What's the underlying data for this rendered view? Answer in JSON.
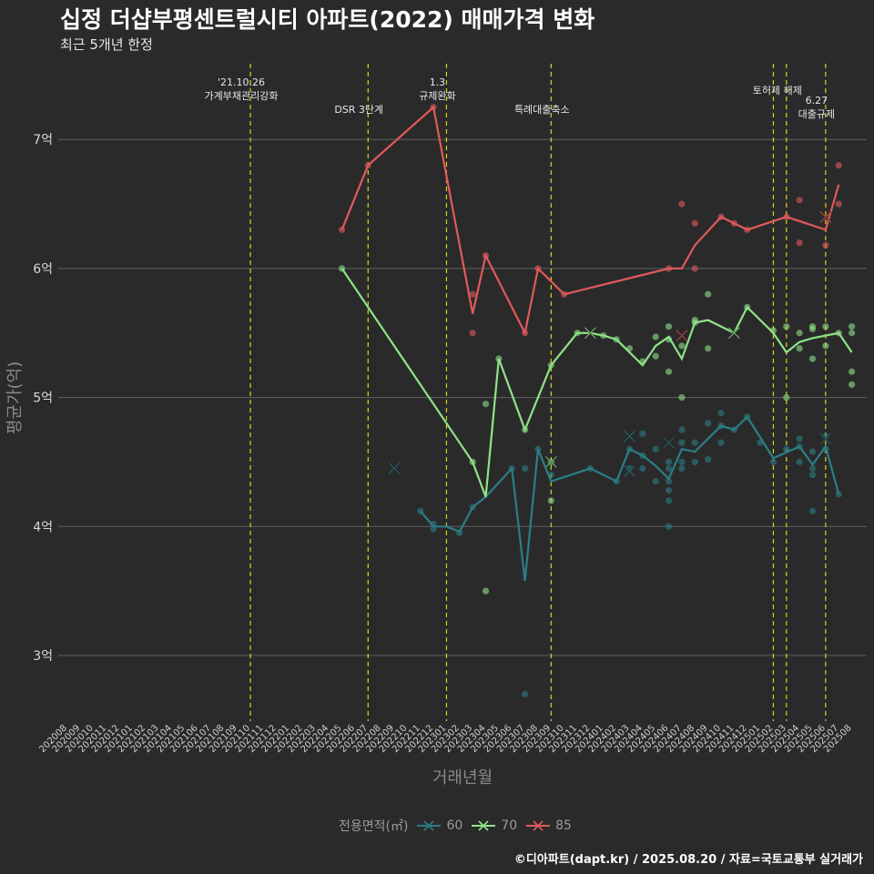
{
  "chart_data": {
    "type": "line",
    "title": "십정 더샵부평센트럴시티 아파트(2022) 매매가격 변화",
    "subtitle": "최근 5개년 한정",
    "xlabel": "거래년월",
    "ylabel": "평균가(억)",
    "caption": "©디아파트(dapt.kr) / 2025.08.20 / 자료=국토교통부 실거래가",
    "legend_title": "전용면적(㎡)",
    "legend_position": "bottom",
    "grid": true,
    "ylim": [
      2.5,
      7.5
    ],
    "yticks": [
      3,
      4,
      5,
      6,
      7
    ],
    "ytick_labels": [
      "3억",
      "4억",
      "5억",
      "6억",
      "7억"
    ],
    "x_categories": [
      "202008",
      "202009",
      "202010",
      "202011",
      "202012",
      "202101",
      "202102",
      "202103",
      "202104",
      "202105",
      "202106",
      "202107",
      "202108",
      "202109",
      "202110",
      "202111",
      "202112",
      "202201",
      "202202",
      "202203",
      "202204",
      "202205",
      "202206",
      "202207",
      "202208",
      "202209",
      "202210",
      "202211",
      "202212",
      "202301",
      "202302",
      "202303",
      "202304",
      "202305",
      "202306",
      "202307",
      "202308",
      "202309",
      "202310",
      "202311",
      "202312",
      "202401",
      "202402",
      "202403",
      "202404",
      "202405",
      "202406",
      "202407",
      "202408",
      "202409",
      "202410",
      "202411",
      "202412",
      "202501",
      "202502",
      "202503",
      "202504",
      "202505",
      "202506",
      "202507",
      "202508"
    ],
    "events": [
      {
        "x": 14,
        "label": [
          "'21.10.26",
          "가계부채관리강화"
        ],
        "row": "top"
      },
      {
        "x": 23,
        "label": [
          "DSR 3단계"
        ],
        "row": "low"
      },
      {
        "x": 29,
        "label": [
          "1.3",
          "규제완화"
        ],
        "row": "top"
      },
      {
        "x": 37,
        "label": [
          "특례대출축소"
        ],
        "row": "low"
      },
      {
        "x": 54,
        "label": [],
        "row": "top"
      },
      {
        "x": 55,
        "label": [
          "토허제 해제"
        ],
        "row": "mid"
      },
      {
        "x": 58,
        "label": [
          "6.27",
          "대출규제"
        ],
        "row": "low2"
      }
    ],
    "series": [
      {
        "name": "60",
        "color": "#2a7f86",
        "line": [
          [
            27,
            4.12
          ],
          [
            28,
            4.0
          ],
          [
            29,
            4.0
          ],
          [
            30,
            3.96
          ],
          [
            31,
            4.15
          ],
          [
            32,
            4.23
          ],
          [
            34,
            4.45
          ],
          [
            35,
            3.58
          ],
          [
            36,
            4.6
          ],
          [
            37,
            4.35
          ],
          [
            40,
            4.45
          ],
          [
            42,
            4.35
          ],
          [
            43,
            4.6
          ],
          [
            44,
            4.55
          ],
          [
            45,
            4.47
          ],
          [
            46,
            4.37
          ],
          [
            47,
            4.6
          ],
          [
            48,
            4.58
          ],
          [
            50,
            4.78
          ],
          [
            51,
            4.75
          ],
          [
            52,
            4.85
          ],
          [
            54,
            4.53
          ],
          [
            56,
            4.62
          ],
          [
            57,
            4.48
          ],
          [
            58,
            4.62
          ],
          [
            59,
            4.25
          ]
        ],
        "points": [
          [
            27,
            4.12
          ],
          [
            28,
            3.98
          ],
          [
            28,
            4.02
          ],
          [
            30,
            3.95
          ],
          [
            31,
            4.15
          ],
          [
            34,
            4.45
          ],
          [
            35,
            4.45
          ],
          [
            35,
            2.7
          ],
          [
            36,
            4.6
          ],
          [
            37,
            4.4
          ],
          [
            40,
            4.45
          ],
          [
            42,
            4.35
          ],
          [
            43,
            4.45
          ],
          [
            43,
            4.6
          ],
          [
            44,
            4.72
          ],
          [
            44,
            4.55
          ],
          [
            44,
            4.45
          ],
          [
            45,
            4.6
          ],
          [
            45,
            4.35
          ],
          [
            46,
            4.5
          ],
          [
            46,
            4.45
          ],
          [
            46,
            4.35
          ],
          [
            46,
            4.28
          ],
          [
            46,
            4.2
          ],
          [
            46,
            4.0
          ],
          [
            47,
            4.75
          ],
          [
            47,
            4.65
          ],
          [
            47,
            4.5
          ],
          [
            47,
            4.45
          ],
          [
            48,
            4.65
          ],
          [
            48,
            4.5
          ],
          [
            49,
            4.8
          ],
          [
            49,
            4.52
          ],
          [
            50,
            4.88
          ],
          [
            50,
            4.78
          ],
          [
            50,
            4.65
          ],
          [
            51,
            4.75
          ],
          [
            52,
            4.85
          ],
          [
            53,
            4.65
          ],
          [
            54,
            4.5
          ],
          [
            55,
            4.6
          ],
          [
            56,
            4.68
          ],
          [
            56,
            4.62
          ],
          [
            56,
            4.5
          ],
          [
            57,
            4.58
          ],
          [
            57,
            4.45
          ],
          [
            57,
            4.4
          ],
          [
            57,
            4.12
          ],
          [
            58,
            4.7
          ],
          [
            58,
            4.6
          ],
          [
            59,
            4.25
          ]
        ],
        "crosses": [
          [
            25,
            4.45
          ],
          [
            43,
            4.7
          ],
          [
            43,
            4.43
          ],
          [
            46,
            4.65
          ],
          [
            58,
            4.68
          ]
        ]
      },
      {
        "name": "70",
        "color": "#8fe388",
        "line": [
          [
            21,
            6.0
          ],
          [
            31,
            4.5
          ],
          [
            32,
            4.23
          ],
          [
            33,
            5.3
          ],
          [
            35,
            4.75
          ],
          [
            37,
            5.25
          ],
          [
            39,
            5.5
          ],
          [
            40,
            5.5
          ],
          [
            41,
            5.48
          ],
          [
            42,
            5.45
          ],
          [
            43,
            5.35
          ],
          [
            44,
            5.25
          ],
          [
            45,
            5.4
          ],
          [
            46,
            5.47
          ],
          [
            47,
            5.3
          ],
          [
            48,
            5.58
          ],
          [
            49,
            5.6
          ],
          [
            50,
            5.55
          ],
          [
            51,
            5.5
          ],
          [
            52,
            5.7
          ],
          [
            54,
            5.5
          ],
          [
            55,
            5.35
          ],
          [
            56,
            5.43
          ],
          [
            57,
            5.46
          ],
          [
            59,
            5.5
          ],
          [
            60,
            5.35
          ]
        ],
        "points": [
          [
            21,
            6.0
          ],
          [
            31,
            4.5
          ],
          [
            32,
            4.95
          ],
          [
            32,
            3.5
          ],
          [
            33,
            5.3
          ],
          [
            35,
            4.75
          ],
          [
            37,
            5.25
          ],
          [
            37,
            4.5
          ],
          [
            37,
            4.2
          ],
          [
            39,
            5.5
          ],
          [
            41,
            5.48
          ],
          [
            42,
            5.45
          ],
          [
            43,
            5.38
          ],
          [
            44,
            5.28
          ],
          [
            45,
            5.47
          ],
          [
            45,
            5.32
          ],
          [
            46,
            5.55
          ],
          [
            46,
            5.45
          ],
          [
            46,
            5.2
          ],
          [
            47,
            5.0
          ],
          [
            47,
            5.4
          ],
          [
            48,
            5.6
          ],
          [
            48,
            5.58
          ],
          [
            49,
            5.8
          ],
          [
            49,
            5.38
          ],
          [
            52,
            5.7
          ],
          [
            54,
            5.52
          ],
          [
            55,
            5.55
          ],
          [
            55,
            5.0
          ],
          [
            56,
            5.5
          ],
          [
            56,
            5.38
          ],
          [
            57,
            5.55
          ],
          [
            57,
            5.53
          ],
          [
            57,
            5.3
          ],
          [
            58,
            5.55
          ],
          [
            58,
            5.4
          ],
          [
            59,
            5.5
          ],
          [
            60,
            5.55
          ],
          [
            60,
            5.5
          ],
          [
            60,
            5.2
          ],
          [
            60,
            5.1
          ]
        ],
        "crosses": [
          [
            40,
            5.5
          ],
          [
            37,
            4.5
          ],
          [
            51,
            5.5
          ],
          [
            47,
            5.48
          ]
        ]
      },
      {
        "name": "85",
        "color": "#e05a5a",
        "line": [
          [
            21,
            6.3
          ],
          [
            23,
            6.8
          ],
          [
            28,
            7.25
          ],
          [
            31,
            5.65
          ],
          [
            32,
            6.1
          ],
          [
            35,
            5.5
          ],
          [
            36,
            6.0
          ],
          [
            38,
            5.8
          ],
          [
            46,
            6.0
          ],
          [
            47,
            6.0
          ],
          [
            48,
            6.18
          ],
          [
            50,
            6.4
          ],
          [
            51,
            6.35
          ],
          [
            52,
            6.3
          ],
          [
            55,
            6.4
          ],
          [
            58,
            6.3
          ],
          [
            59,
            6.65
          ]
        ],
        "points": [
          [
            21,
            6.3
          ],
          [
            23,
            6.8
          ],
          [
            28,
            7.25
          ],
          [
            31,
            5.8
          ],
          [
            31,
            5.5
          ],
          [
            32,
            6.1
          ],
          [
            35,
            5.5
          ],
          [
            36,
            6.0
          ],
          [
            38,
            5.8
          ],
          [
            46,
            6.0
          ],
          [
            47,
            6.5
          ],
          [
            48,
            6.35
          ],
          [
            48,
            6.0
          ],
          [
            50,
            6.4
          ],
          [
            51,
            6.35
          ],
          [
            52,
            6.3
          ],
          [
            55,
            6.4
          ],
          [
            56,
            6.53
          ],
          [
            56,
            6.2
          ],
          [
            58,
            6.18
          ],
          [
            59,
            6.8
          ],
          [
            59,
            6.5
          ]
        ],
        "crosses": [
          [
            47,
            5.48
          ],
          [
            58,
            6.4
          ]
        ]
      }
    ]
  }
}
